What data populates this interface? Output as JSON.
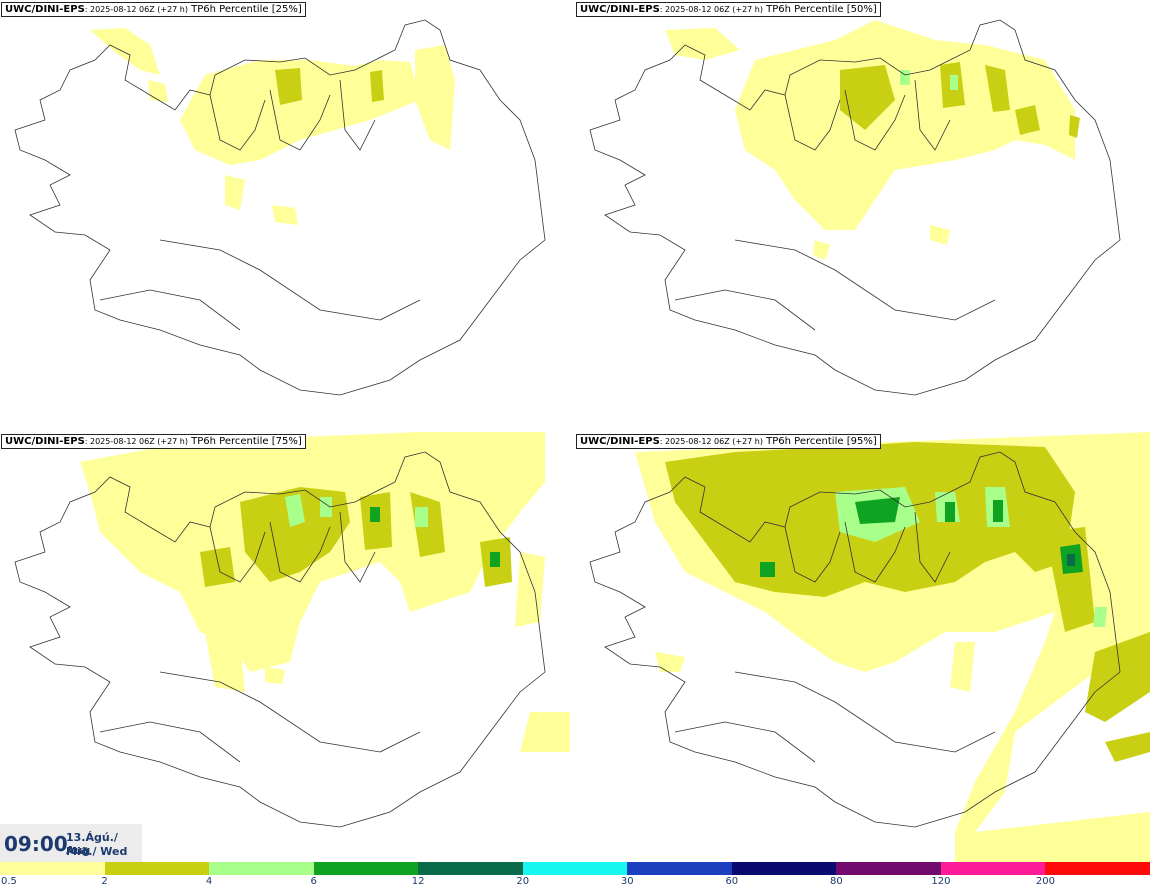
{
  "panels": [
    {
      "id": "p25",
      "title_bold": "UWC/DINI-EPS",
      "title_small": ": 2025-08-12 06Z (+27 h)",
      "title_rest": " TP6h Percentile [25%]"
    },
    {
      "id": "p50",
      "title_bold": "UWC/DINI-EPS",
      "title_small": ": 2025-08-12 06Z (+27 h)",
      "title_rest": " TP6h Percentile [50%]"
    },
    {
      "id": "p75",
      "title_bold": "UWC/DINI-EPS",
      "title_small": ": 2025-08-12 06Z (+27 h)",
      "title_rest": " TP6h Percentile [75%]"
    },
    {
      "id": "p95",
      "title_bold": "UWC/DINI-EPS",
      "title_small": ": 2025-08-12 06Z (+27 h)",
      "title_rest": " TP6h Percentile [95%]"
    }
  ],
  "time": {
    "hour": "09:00",
    "date_line1": "13.Ágú./ Aug",
    "date_line2": "Mið./ Wed"
  },
  "legend": {
    "colors": [
      "#ffff99",
      "#c9cf12",
      "#a8ff8a",
      "#0fa321",
      "#0a6b4a",
      "#19f5ef",
      "#1b3fbf",
      "#0a0a70",
      "#720a6e",
      "#ff1a9a",
      "#ff0a0a"
    ],
    "ticks": [
      "0.5",
      "2",
      "4",
      "6",
      "12",
      "20",
      "30",
      "60",
      "80",
      "120",
      "200"
    ]
  }
}
